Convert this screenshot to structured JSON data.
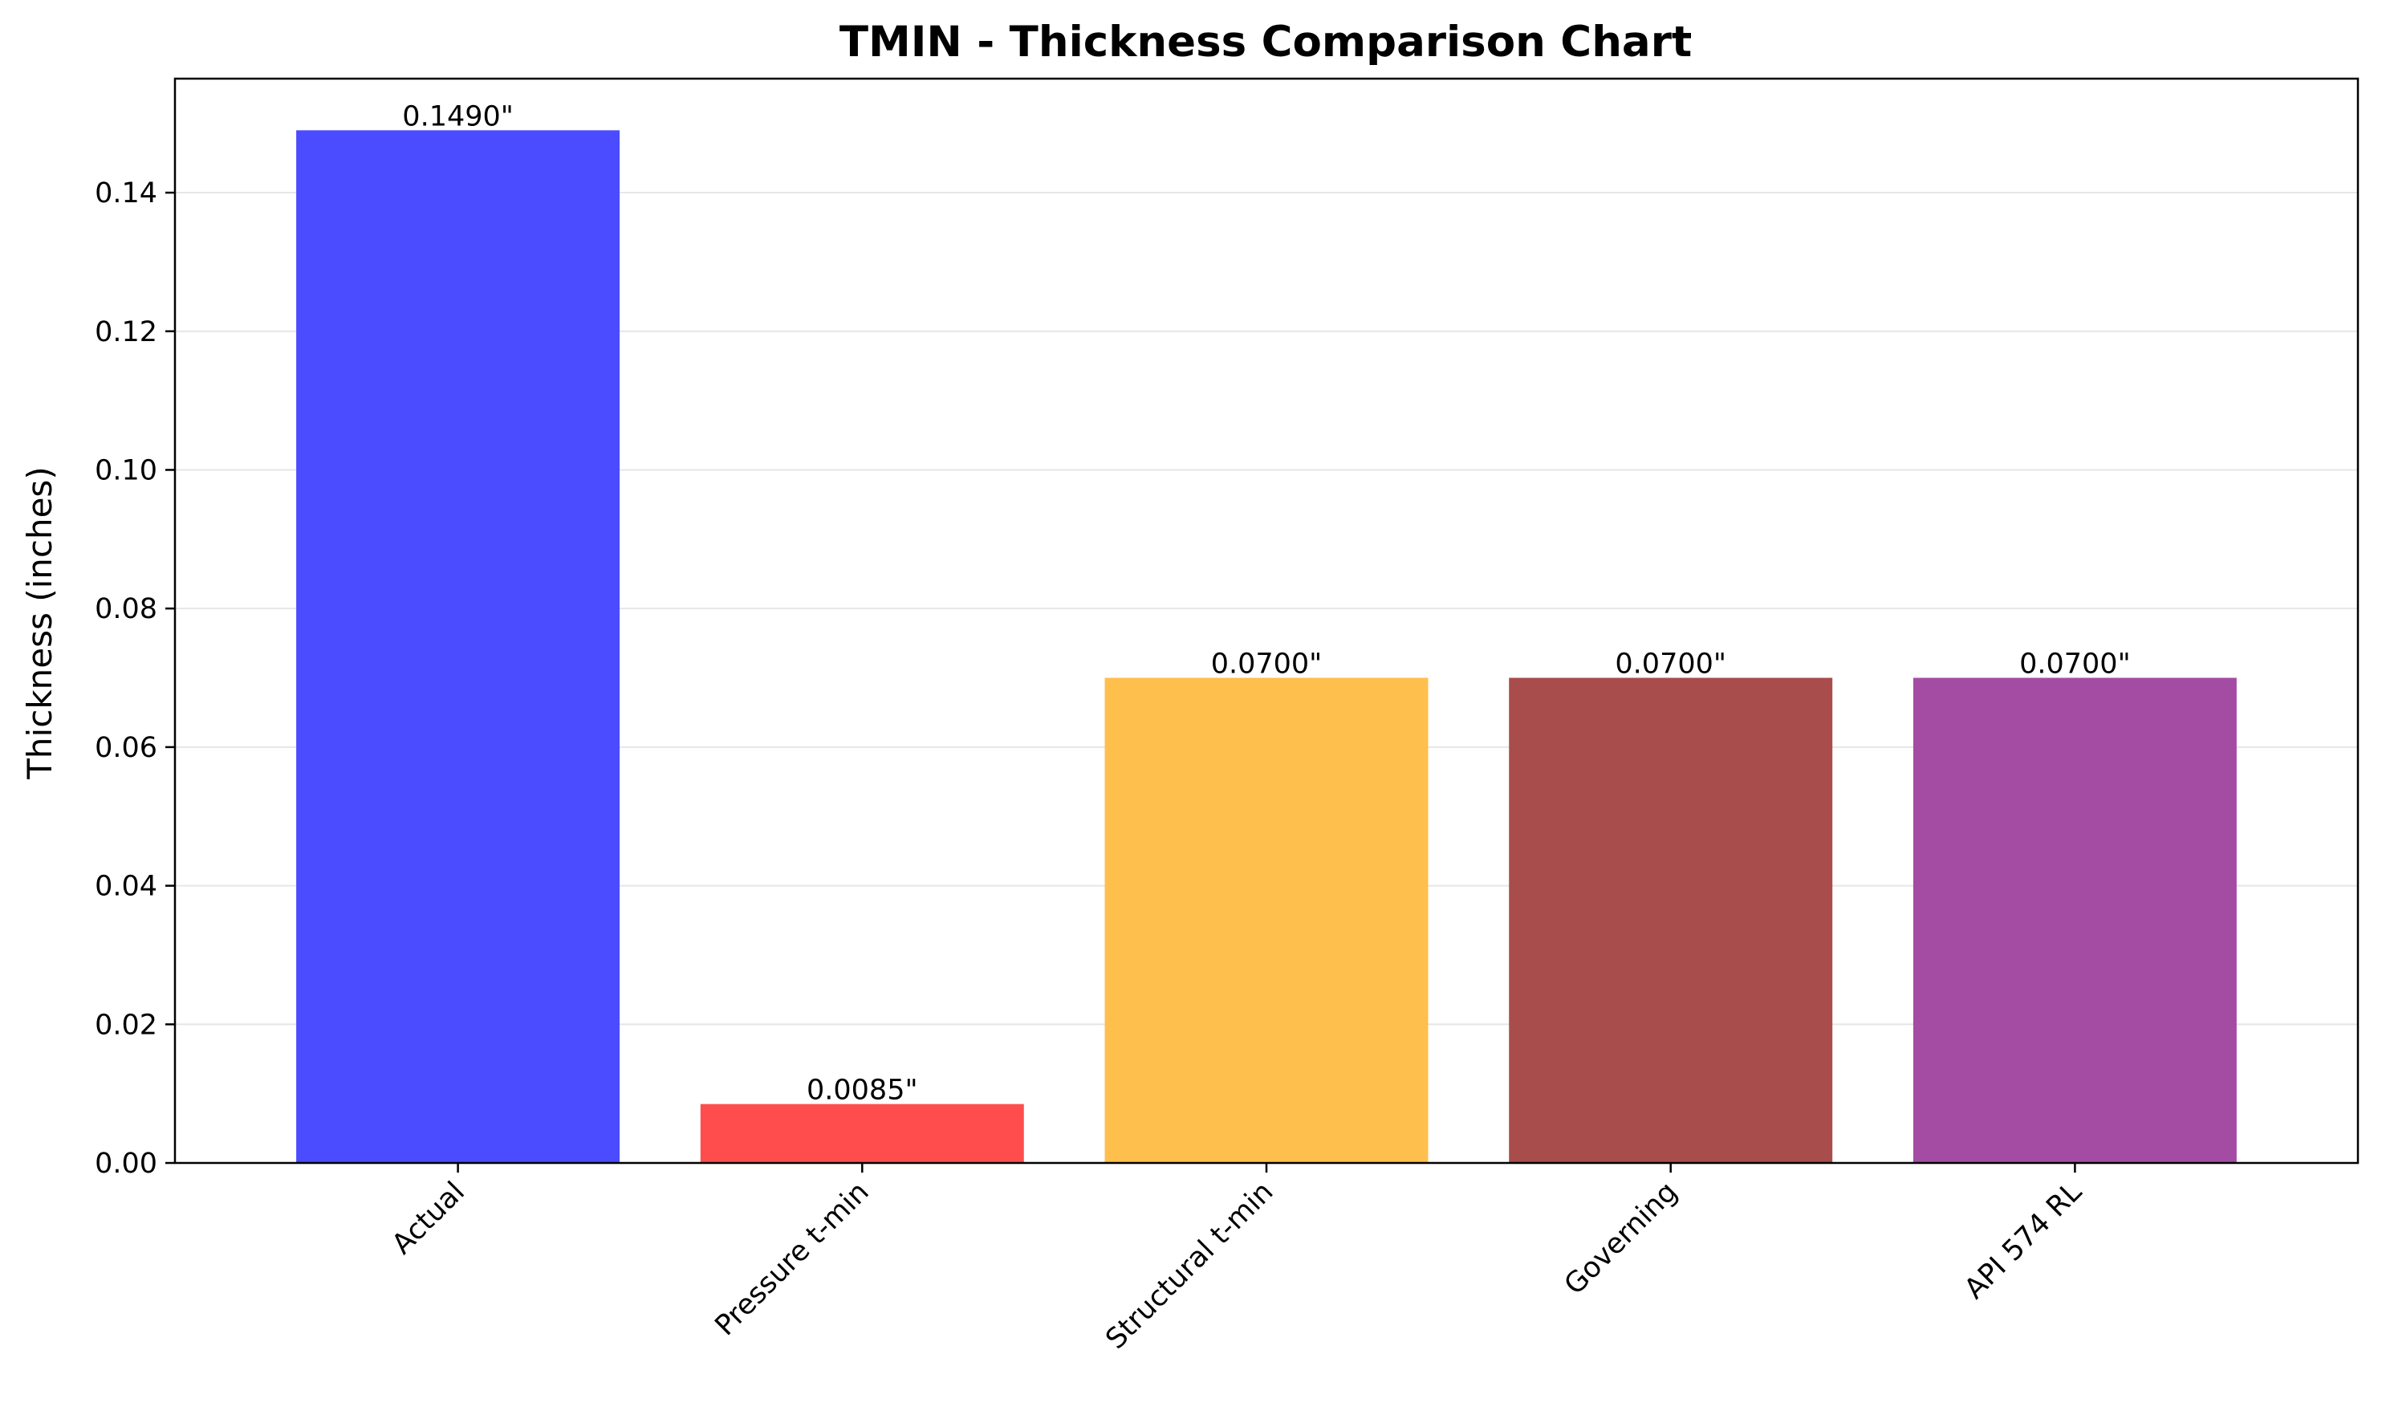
{
  "chart_data": {
    "type": "bar",
    "title": "TMIN - Thickness Comparison Chart",
    "xlabel": "",
    "ylabel": "Thickness (inches)",
    "categories": [
      "Actual",
      "Pressure t-min",
      "Structural t-min",
      "Governing",
      "API 574 RL"
    ],
    "values": [
      0.149,
      0.0085,
      0.07,
      0.07,
      0.07
    ],
    "data_labels": [
      "0.1490\"",
      "0.0085\"",
      "0.0700\"",
      "0.0700\"",
      "0.0700\""
    ],
    "colors": [
      "#4b4bff",
      "#ff4d4d",
      "#ffbf4d",
      "#a94c4c",
      "#a44ca4"
    ],
    "ylim": [
      0,
      0.15645
    ],
    "yticks": [
      0.0,
      0.02,
      0.04,
      0.06,
      0.08,
      0.1,
      0.12,
      0.14
    ],
    "ytick_labels": [
      "0.00",
      "0.02",
      "0.04",
      "0.06",
      "0.08",
      "0.10",
      "0.12",
      "0.14"
    ],
    "grid": {
      "y": true,
      "x": false,
      "color": "#e6e6e6"
    },
    "legend": "none"
  }
}
